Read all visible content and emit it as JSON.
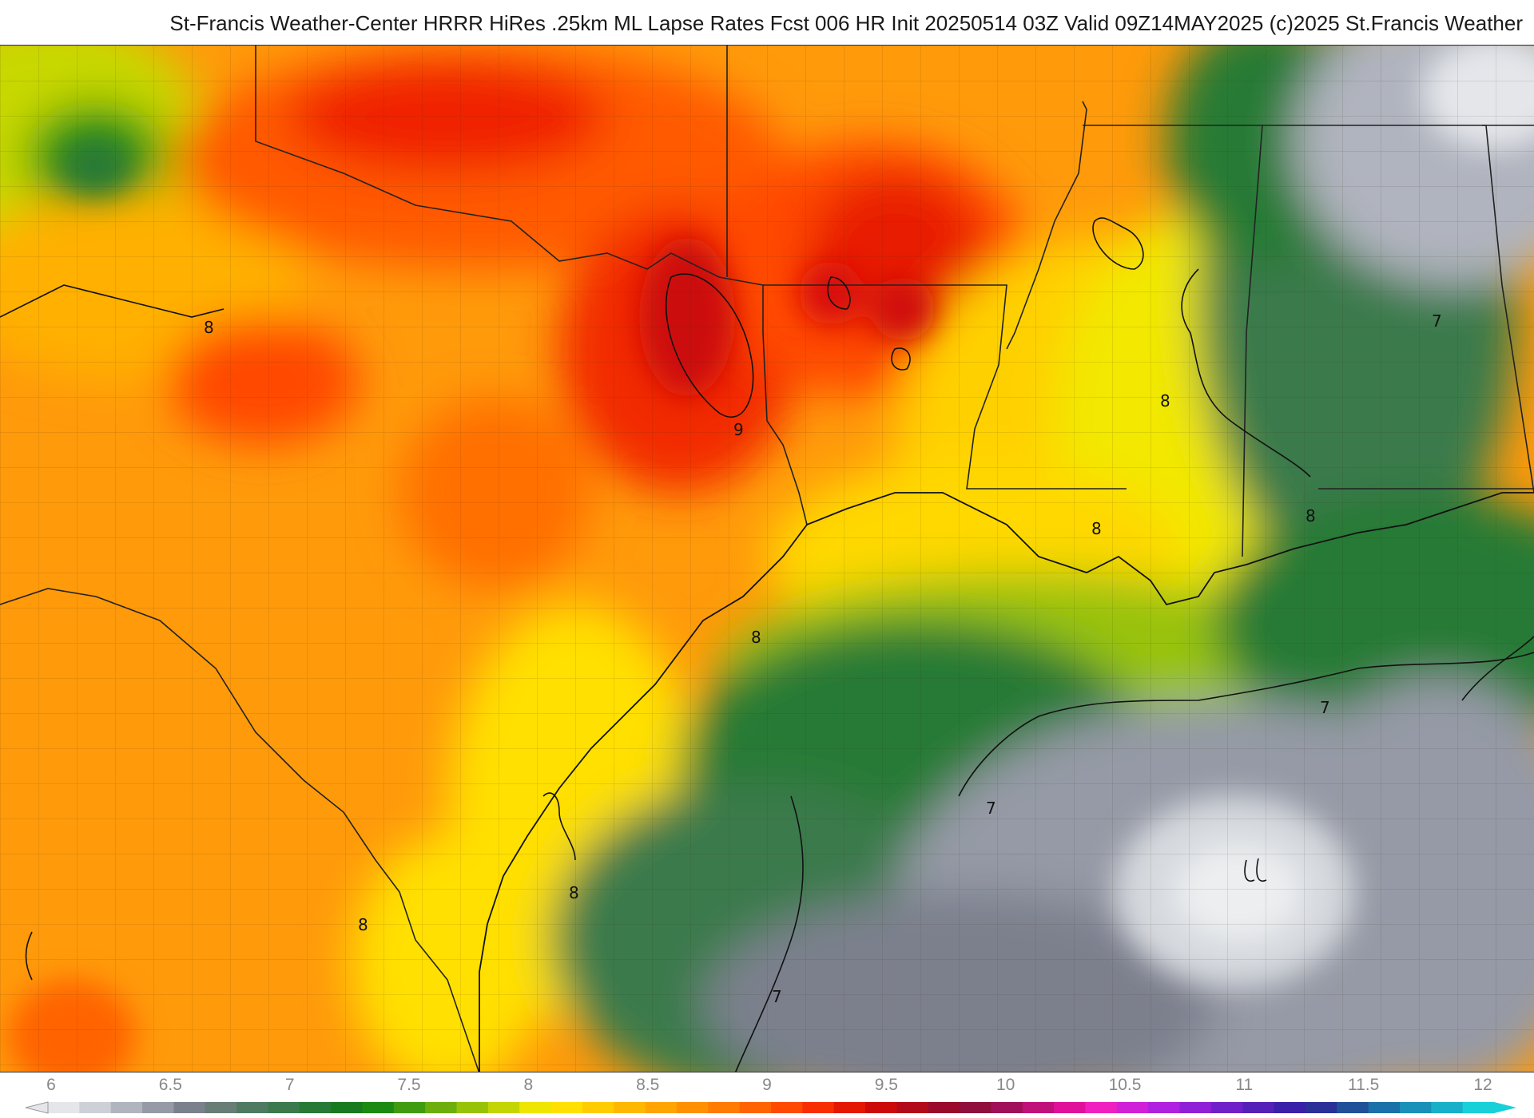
{
  "title": "St-Francis Weather-Center HRRR HiRes .25km ML Lapse Rates  Fcst 006 HR Init 20250514 03Z  Valid 09Z14MAY2025    (c)2025 St.Francis Weather",
  "legend": {
    "ticks": [
      "6",
      "6.5",
      "7",
      "7.5",
      "8",
      "8.5",
      "9",
      "9.5",
      "10",
      "10.5",
      "11",
      "11.5",
      "12"
    ],
    "min": 6,
    "max": 12,
    "colors": [
      "#e4e6ea",
      "#cdd0d7",
      "#b0b4be",
      "#959aa6",
      "#7b808d",
      "#677d76",
      "#4f7a62",
      "#3b7a4c",
      "#267a36",
      "#177a1f",
      "#1b8a12",
      "#3f9c10",
      "#6cae0c",
      "#98c208",
      "#c4d504",
      "#eee600",
      "#ffe000",
      "#ffcc00",
      "#ffb800",
      "#ffa400",
      "#ff9000",
      "#ff7c00",
      "#ff6400",
      "#ff4a00",
      "#f82e00",
      "#e41800",
      "#cc0a0a",
      "#b20a1a",
      "#9a0a2a",
      "#900e3c",
      "#a0105a",
      "#c0107a",
      "#e0109a",
      "#f020c0",
      "#d020d8",
      "#b020e0",
      "#9020d8",
      "#7020c8",
      "#5520b8",
      "#3a20a8",
      "#2a3098",
      "#205098",
      "#1a70a8",
      "#1890b8",
      "#18b0c8",
      "#18d0d8"
    ]
  },
  "contour_labels": [
    {
      "text": "8"
    },
    {
      "text": "9"
    },
    {
      "text": "8"
    },
    {
      "text": "8"
    },
    {
      "text": "8"
    },
    {
      "text": "8"
    },
    {
      "text": "8"
    },
    {
      "text": "8"
    },
    {
      "text": "7"
    },
    {
      "text": "7"
    },
    {
      "text": "7"
    },
    {
      "text": "7"
    }
  ]
}
